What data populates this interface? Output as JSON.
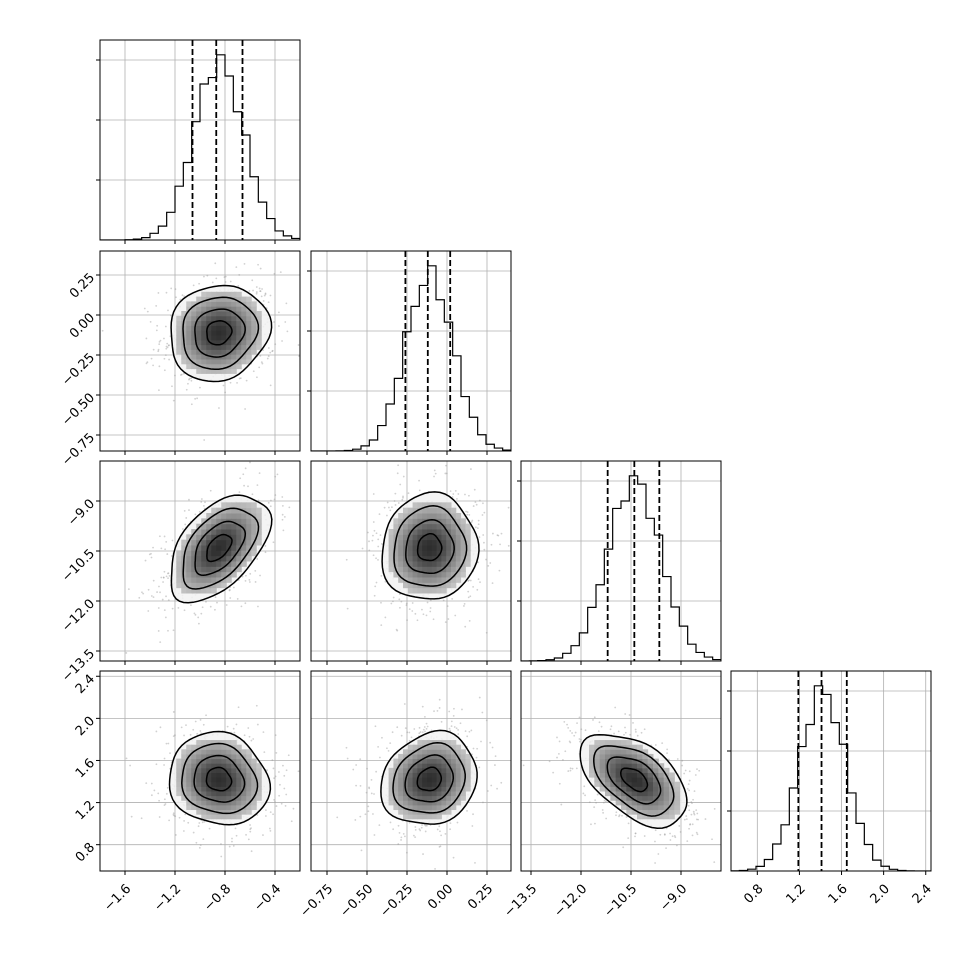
{
  "chart_data": {
    "type": "corner",
    "parameters": [
      {
        "mean": -0.85,
        "sd": 0.2,
        "range": [
          -1.8,
          -0.2
        ],
        "ticks": [
          -1.6,
          -1.2,
          -0.8,
          -0.4
        ],
        "tick_labels": [
          "−1.6",
          "−1.2",
          "−0.8",
          "−0.4"
        ],
        "quantiles": [
          -1.06,
          -0.87,
          -0.66
        ]
      },
      {
        "mean": -0.11,
        "sd": 0.15,
        "range": [
          -0.85,
          0.4
        ],
        "ticks": [
          -0.75,
          -0.5,
          -0.25,
          0.0,
          0.25
        ],
        "tick_labels": [
          "−0.75",
          "−0.50",
          "−0.25",
          "0.00",
          "0.25"
        ],
        "quantiles": [
          -0.26,
          -0.12,
          0.02
        ]
      },
      {
        "mean": -10.4,
        "sd": 0.8,
        "range": [
          -13.8,
          -7.8
        ],
        "ticks": [
          -13.5,
          -12.0,
          -10.5,
          -9.0
        ],
        "tick_labels": [
          "−13.5",
          "−12.0",
          "−10.5",
          "−9.0"
        ],
        "quantiles": [
          -11.2,
          -10.4,
          -9.65
        ]
      },
      {
        "mean": 1.42,
        "sd": 0.22,
        "range": [
          0.55,
          2.45
        ],
        "ticks": [
          0.8,
          1.2,
          1.6,
          2.0,
          2.4
        ],
        "tick_labels": [
          "0.8",
          "1.2",
          "1.6",
          "2.0",
          "2.4"
        ],
        "quantiles": [
          1.19,
          1.41,
          1.65
        ]
      }
    ],
    "correlations": [
      [
        1.0,
        0.1,
        0.5,
        -0.1
      ],
      [
        0.1,
        1.0,
        0.05,
        0.15
      ],
      [
        0.5,
        0.05,
        1.0,
        -0.5
      ],
      [
        -0.1,
        0.15,
        -0.5,
        1.0
      ]
    ],
    "grid": true,
    "contour_levels_sigma": [
      0.5,
      1.0,
      1.5,
      2.0
    ]
  }
}
